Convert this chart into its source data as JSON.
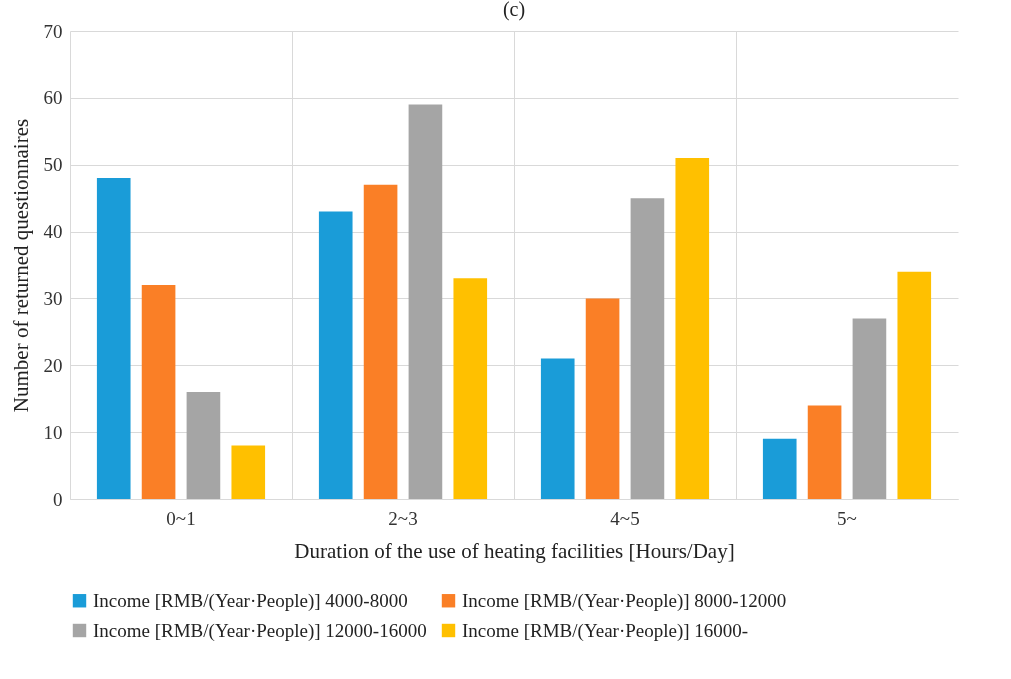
{
  "chart_data": {
    "type": "bar",
    "title": "(c)",
    "xlabel": "Duration of the use of heating facilities  [Hours/Day]",
    "ylabel": "Number of returned questionnaires",
    "categories": [
      "0~1",
      "2~3",
      "4~5",
      "5~"
    ],
    "series": [
      {
        "name": "Income [RMB/(Year·People)] 4000-8000",
        "color": "#1a9cd8",
        "values": [
          48,
          43,
          21,
          9
        ]
      },
      {
        "name": "Income [RMB/(Year·People)] 8000-12000",
        "color": "#fa7f26",
        "values": [
          32,
          47,
          30,
          14
        ]
      },
      {
        "name": "Income [RMB/(Year·People)] 12000-16000",
        "color": "#a5a5a5",
        "values": [
          16,
          59,
          45,
          27
        ]
      },
      {
        "name": "Income [RMB/(Year·People)] 16000-",
        "color": "#ffc000",
        "values": [
          8,
          33,
          51,
          34
        ]
      }
    ],
    "ylim": [
      0,
      70
    ],
    "yticks": [
      0,
      10,
      20,
      30,
      40,
      50,
      60,
      70
    ],
    "grid": true,
    "legend": "bottom"
  }
}
